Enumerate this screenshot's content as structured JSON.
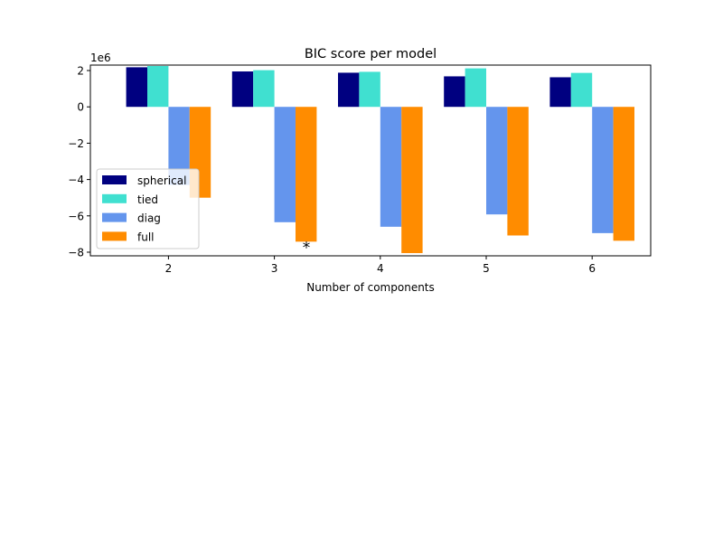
{
  "chart_data": {
    "type": "bar",
    "title": "BIC score per model",
    "xlabel": "Number of components",
    "ylabel": "",
    "y_offset_label": "1e6",
    "categories": [
      "2",
      "3",
      "4",
      "5",
      "6"
    ],
    "y_ticks": [
      2,
      0,
      -2,
      -4,
      -6,
      -8
    ],
    "y_tick_labels": [
      "2",
      "0",
      "−2",
      "−4",
      "−6",
      "−8"
    ],
    "ylim": [
      -8.2,
      2.3
    ],
    "grid": false,
    "legend_position": "lower-left",
    "series": [
      {
        "name": "spherical",
        "color": "#000080",
        "values": [
          2.18,
          1.95,
          1.88,
          1.68,
          1.63
        ]
      },
      {
        "name": "tied",
        "color": "#40e0d0",
        "values": [
          2.25,
          2.02,
          1.93,
          2.12,
          1.87
        ]
      },
      {
        "name": "diag",
        "color": "#6495ed",
        "values": [
          -4.3,
          -6.35,
          -6.6,
          -5.92,
          -6.95
        ]
      },
      {
        "name": "full",
        "color": "#ff8c00",
        "values": [
          -5.0,
          -7.42,
          -8.05,
          -7.08,
          -7.37
        ]
      }
    ],
    "annotation": {
      "text": "*",
      "category_index": 1,
      "y_value": -7.42
    }
  }
}
